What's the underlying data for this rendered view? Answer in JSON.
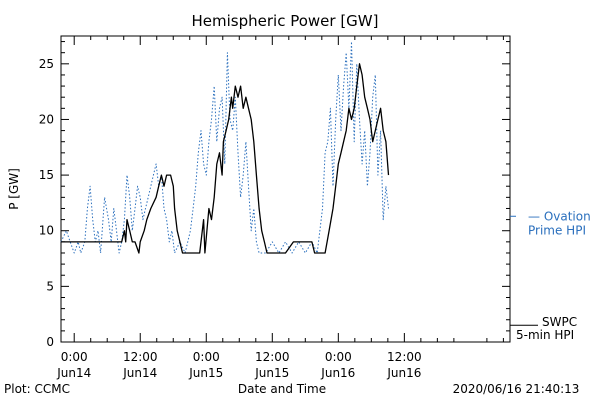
{
  "chart_data": {
    "type": "line",
    "title": "Hemispheric Power [GW]",
    "ylabel": "P [GW]",
    "xlabel": "Date and Time",
    "ylim": [
      0,
      27.5
    ],
    "xlim": [
      -0.1,
      3.3
    ],
    "y_ticks": [
      0,
      5,
      10,
      15,
      20,
      25
    ],
    "y_tick_labels": [
      "0",
      "5",
      "10",
      "15",
      "20",
      "25"
    ],
    "x_ticks": [
      {
        "x": 0.0,
        "time": "0:00",
        "date": "Jun14"
      },
      {
        "x": 0.5,
        "time": "12:00",
        "date": "Jun14"
      },
      {
        "x": 1.0,
        "time": "0:00",
        "date": "Jun15"
      },
      {
        "x": 1.5,
        "time": "12:00",
        "date": "Jun15"
      },
      {
        "x": 2.0,
        "time": "0:00",
        "date": "Jun16"
      },
      {
        "x": 2.5,
        "time": "12:00",
        "date": "Jun16"
      }
    ],
    "grid": false,
    "legend_position": "right",
    "series": [
      {
        "name": "SWPC 5-min HPI",
        "legend_lines": [
          "SWPC",
          "5-min HPI"
        ],
        "style": "solid",
        "color": "#000000",
        "points": [
          [
            -0.1,
            9
          ],
          [
            0.2,
            9
          ],
          [
            0.36,
            9
          ],
          [
            0.38,
            10
          ],
          [
            0.39,
            9
          ],
          [
            0.4,
            11
          ],
          [
            0.42,
            10
          ],
          [
            0.44,
            9
          ],
          [
            0.46,
            9
          ],
          [
            0.49,
            8
          ],
          [
            0.5,
            9
          ],
          [
            0.53,
            10
          ],
          [
            0.55,
            11
          ],
          [
            0.58,
            12
          ],
          [
            0.62,
            13
          ],
          [
            0.64,
            14
          ],
          [
            0.66,
            15
          ],
          [
            0.68,
            14
          ],
          [
            0.7,
            15
          ],
          [
            0.73,
            15
          ],
          [
            0.75,
            14
          ],
          [
            0.76,
            12
          ],
          [
            0.78,
            10
          ],
          [
            0.8,
            9
          ],
          [
            0.82,
            8
          ],
          [
            0.9,
            8
          ],
          [
            0.95,
            8
          ],
          [
            0.98,
            11
          ],
          [
            0.99,
            8
          ],
          [
            1.02,
            12
          ],
          [
            1.04,
            11
          ],
          [
            1.06,
            13
          ],
          [
            1.08,
            16
          ],
          [
            1.1,
            17
          ],
          [
            1.12,
            15
          ],
          [
            1.13,
            18
          ],
          [
            1.15,
            19
          ],
          [
            1.17,
            20
          ],
          [
            1.19,
            22
          ],
          [
            1.2,
            21
          ],
          [
            1.22,
            23
          ],
          [
            1.24,
            22
          ],
          [
            1.26,
            23
          ],
          [
            1.28,
            21
          ],
          [
            1.3,
            22
          ],
          [
            1.32,
            21
          ],
          [
            1.34,
            20
          ],
          [
            1.36,
            18
          ],
          [
            1.38,
            15
          ],
          [
            1.4,
            12
          ],
          [
            1.42,
            10
          ],
          [
            1.44,
            9
          ],
          [
            1.46,
            8
          ],
          [
            1.6,
            8
          ],
          [
            1.66,
            9
          ],
          [
            1.8,
            9
          ],
          [
            1.82,
            8
          ],
          [
            1.9,
            8
          ],
          [
            1.93,
            10
          ],
          [
            1.96,
            12
          ],
          [
            1.98,
            14
          ],
          [
            2.0,
            16
          ],
          [
            2.02,
            17
          ],
          [
            2.04,
            18
          ],
          [
            2.06,
            19
          ],
          [
            2.08,
            21
          ],
          [
            2.1,
            20
          ],
          [
            2.12,
            21
          ],
          [
            2.14,
            23
          ],
          [
            2.16,
            25
          ],
          [
            2.18,
            24
          ],
          [
            2.2,
            22
          ],
          [
            2.22,
            21
          ],
          [
            2.24,
            20
          ],
          [
            2.26,
            18
          ],
          [
            2.28,
            19
          ],
          [
            2.3,
            20
          ],
          [
            2.32,
            21
          ],
          [
            2.34,
            19
          ],
          [
            2.36,
            18
          ],
          [
            2.38,
            15
          ]
        ]
      },
      {
        "name": "Ovation Prime HPI",
        "legend_lines": [
          "— Ovation",
          "Prime HPI"
        ],
        "style": "dotted",
        "color": "#2a6fbd",
        "points": [
          [
            -0.1,
            9
          ],
          [
            -0.06,
            10
          ],
          [
            -0.03,
            9
          ],
          [
            0.0,
            8
          ],
          [
            0.03,
            9
          ],
          [
            0.05,
            8
          ],
          [
            0.08,
            9
          ],
          [
            0.1,
            12
          ],
          [
            0.12,
            14
          ],
          [
            0.14,
            11
          ],
          [
            0.16,
            9
          ],
          [
            0.18,
            10
          ],
          [
            0.2,
            8
          ],
          [
            0.23,
            13
          ],
          [
            0.26,
            11
          ],
          [
            0.28,
            9
          ],
          [
            0.3,
            12
          ],
          [
            0.32,
            10
          ],
          [
            0.34,
            8
          ],
          [
            0.36,
            9
          ],
          [
            0.38,
            11
          ],
          [
            0.4,
            15
          ],
          [
            0.42,
            13
          ],
          [
            0.44,
            10
          ],
          [
            0.46,
            12
          ],
          [
            0.48,
            14
          ],
          [
            0.5,
            13
          ],
          [
            0.52,
            11
          ],
          [
            0.54,
            12
          ],
          [
            0.56,
            13
          ],
          [
            0.58,
            14
          ],
          [
            0.6,
            15
          ],
          [
            0.62,
            16
          ],
          [
            0.64,
            14
          ],
          [
            0.66,
            15
          ],
          [
            0.68,
            12
          ],
          [
            0.7,
            11
          ],
          [
            0.72,
            9
          ],
          [
            0.74,
            10
          ],
          [
            0.76,
            8
          ],
          [
            0.8,
            9
          ],
          [
            0.84,
            8
          ],
          [
            0.88,
            10
          ],
          [
            0.9,
            12
          ],
          [
            0.92,
            14
          ],
          [
            0.94,
            17
          ],
          [
            0.96,
            19
          ],
          [
            0.98,
            16
          ],
          [
            1.0,
            15
          ],
          [
            1.02,
            18
          ],
          [
            1.04,
            20
          ],
          [
            1.06,
            23
          ],
          [
            1.08,
            18
          ],
          [
            1.1,
            21
          ],
          [
            1.12,
            22
          ],
          [
            1.14,
            16
          ],
          [
            1.16,
            26
          ],
          [
            1.18,
            20
          ],
          [
            1.2,
            19
          ],
          [
            1.22,
            22
          ],
          [
            1.24,
            17
          ],
          [
            1.26,
            13
          ],
          [
            1.28,
            15
          ],
          [
            1.3,
            18
          ],
          [
            1.32,
            14
          ],
          [
            1.34,
            10
          ],
          [
            1.36,
            12
          ],
          [
            1.38,
            9
          ],
          [
            1.4,
            8
          ],
          [
            1.45,
            8
          ],
          [
            1.5,
            9
          ],
          [
            1.55,
            8
          ],
          [
            1.6,
            9
          ],
          [
            1.65,
            8
          ],
          [
            1.7,
            9
          ],
          [
            1.75,
            8
          ],
          [
            1.8,
            9
          ],
          [
            1.84,
            8
          ],
          [
            1.88,
            12
          ],
          [
            1.9,
            17
          ],
          [
            1.92,
            18
          ],
          [
            1.94,
            21
          ],
          [
            1.96,
            14
          ],
          [
            1.98,
            20
          ],
          [
            2.0,
            24
          ],
          [
            2.02,
            19
          ],
          [
            2.04,
            23
          ],
          [
            2.06,
            26
          ],
          [
            2.08,
            21
          ],
          [
            2.1,
            27
          ],
          [
            2.12,
            18
          ],
          [
            2.14,
            25
          ],
          [
            2.16,
            20
          ],
          [
            2.18,
            16
          ],
          [
            2.2,
            19
          ],
          [
            2.22,
            14
          ],
          [
            2.24,
            17
          ],
          [
            2.26,
            22
          ],
          [
            2.28,
            24
          ],
          [
            2.3,
            15
          ],
          [
            2.32,
            19
          ],
          [
            2.34,
            11
          ],
          [
            2.36,
            14
          ],
          [
            2.38,
            12
          ]
        ]
      }
    ]
  },
  "footer": {
    "plot_credit": "Plot: CCMC",
    "timestamp": "2020/06/16 21:40:13"
  }
}
